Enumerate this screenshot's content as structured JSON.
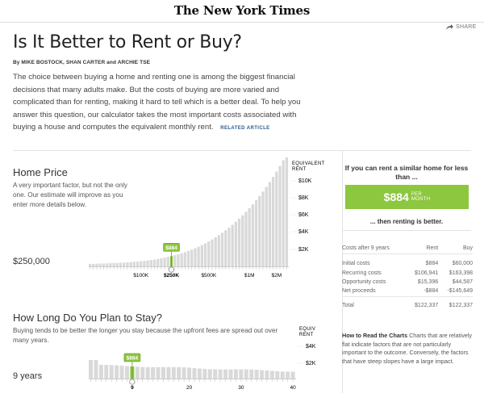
{
  "masthead": "The New York Times",
  "share_label": "SHARE",
  "title": "Is It Better to Rent or Buy?",
  "byline": "By MIKE BOSTOCK, SHAN CARTER and ARCHIE TSE",
  "intro": "The choice between buying a home and renting one is among the biggest financial decisions that many adults make. But the costs of buying are more varied and complicated than for renting, making it hard to tell which is a better deal. To help you answer this question, our calculator takes the most important costs associated with buying a house and computes the equivalent monthly rent.",
  "related_article": "RELATED ARTICLE",
  "home_price": {
    "title": "Home Price",
    "description": "A very important factor, but not the only one. Our estimate will improve as you enter more details below.",
    "value": "$250,000",
    "axis_header": [
      "EQUIVALENT",
      "RENT"
    ],
    "rent_ticks": [
      "$10K",
      "$8K",
      "$6K",
      "$4K",
      "$2K"
    ],
    "x_ticks": [
      "$100K",
      "$250K",
      "$500K",
      "$1M",
      "$2M"
    ],
    "marker_label": "$884",
    "bar_count": 59,
    "selected_index": 24
  },
  "stay": {
    "title": "How Long Do You Plan to Stay?",
    "description": "Buying tends to be better the longer you stay because the upfront fees are spread out over many years.",
    "value": "9 years",
    "axis_header": [
      "EQUIV",
      "RENT"
    ],
    "rent_ticks": [
      "$4K",
      "$2K"
    ],
    "x_ticks": [
      "9",
      "20",
      "30",
      "40"
    ],
    "marker_label": "$884",
    "bar_count": 40,
    "selected_index": 8
  },
  "result": {
    "question": "If you can rent a similar home for less than ...",
    "value": "$884",
    "unit_line1": "PER",
    "unit_line2": "MONTH",
    "verdict": "... then renting is better."
  },
  "costs": {
    "header": [
      "Costs after 9 years",
      "Rent",
      "Buy"
    ],
    "rows": [
      [
        "Initial costs",
        "$884",
        "$60,000"
      ],
      [
        "Recurring costs",
        "$106,941",
        "$163,398"
      ],
      [
        "Opportunity costs",
        "$15,396",
        "$44,587"
      ],
      [
        "Net proceeds",
        "-$884",
        "-$145,649"
      ]
    ],
    "total": [
      "Total",
      "$122,337",
      "$122,337"
    ]
  },
  "howto": {
    "title": "How to Read the Charts",
    "text": "Charts that are relatively flat indicate factors that are not particularly important to the outcome. Conversely, the factors that have steep slopes have a large impact."
  },
  "colors": {
    "accent": "#8dc63f",
    "bar": "#d9d9d9",
    "link": "#2a5d8c"
  }
}
